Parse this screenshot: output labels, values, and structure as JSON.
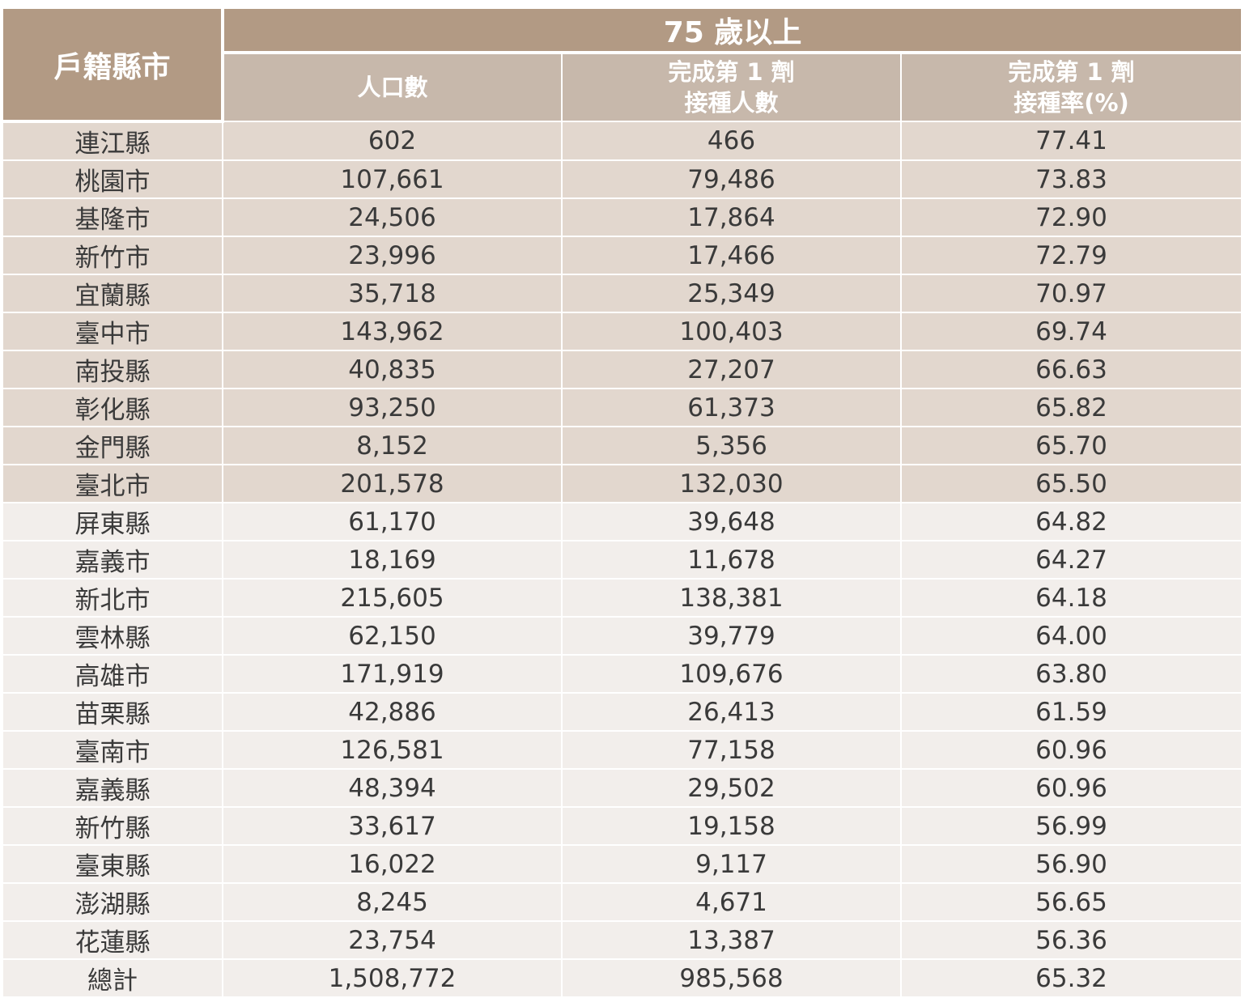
{
  "header": {
    "title": "戶籍縣市",
    "group": "75 歲以上",
    "columns": [
      [
        "人口數"
      ],
      [
        "完成第 1 劑",
        "接種人數"
      ],
      [
        "完成第 1 劑",
        "接種率(%)"
      ]
    ]
  },
  "table": {
    "rows": [
      [
        "連江縣",
        "602",
        "466",
        "77.41"
      ],
      [
        "桃園市",
        "107,661",
        "79,486",
        "73.83"
      ],
      [
        "基隆市",
        "24,506",
        "17,864",
        "72.90"
      ],
      [
        "新竹市",
        "23,996",
        "17,466",
        "72.79"
      ],
      [
        "宜蘭縣",
        "35,718",
        "25,349",
        "70.97"
      ],
      [
        "臺中市",
        "143,962",
        "100,403",
        "69.74"
      ],
      [
        "南投縣",
        "40,835",
        "27,207",
        "66.63"
      ],
      [
        "彰化縣",
        "93,250",
        "61,373",
        "65.82"
      ],
      [
        "金門縣",
        "8,152",
        "5,356",
        "65.70"
      ],
      [
        "臺北市",
        "201,578",
        "132,030",
        "65.50"
      ],
      [
        "屏東縣",
        "61,170",
        "39,648",
        "64.82"
      ],
      [
        "嘉義市",
        "18,169",
        "11,678",
        "64.27"
      ],
      [
        "新北市",
        "215,605",
        "138,381",
        "64.18"
      ],
      [
        "雲林縣",
        "62,150",
        "39,779",
        "64.00"
      ],
      [
        "高雄市",
        "171,919",
        "109,676",
        "63.80"
      ],
      [
        "苗栗縣",
        "42,886",
        "26,413",
        "61.59"
      ],
      [
        "臺南市",
        "126,581",
        "77,158",
        "60.96"
      ],
      [
        "嘉義縣",
        "48,394",
        "29,502",
        "60.96"
      ],
      [
        "新竹縣",
        "33,617",
        "19,158",
        "56.99"
      ],
      [
        "臺東縣",
        "16,022",
        "9,117",
        "56.90"
      ],
      [
        "澎湖縣",
        "8,245",
        "4,671",
        "56.65"
      ],
      [
        "花蓮縣",
        "23,754",
        "13,387",
        "56.36"
      ],
      [
        "總計",
        "1,508,772",
        "985,568",
        "65.32"
      ]
    ]
  }
}
